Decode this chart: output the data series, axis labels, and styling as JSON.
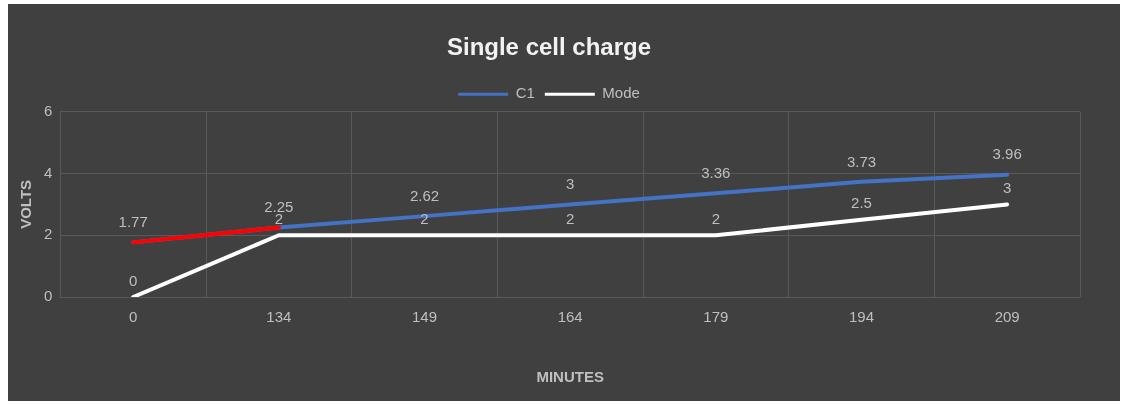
{
  "chart_data": {
    "type": "line",
    "title": "Single cell charge",
    "xlabel": "MINUTES",
    "ylabel": "VOLTS",
    "categories": [
      "0",
      "134",
      "149",
      "164",
      "179",
      "194",
      "209"
    ],
    "series": [
      {
        "name": "C1",
        "color": "#4472c4",
        "colors": [
          "#ff0000",
          "#4472c4",
          "#4472c4",
          "#4472c4",
          "#4472c4",
          "#4472c4",
          "#4472c4"
        ],
        "values": [
          1.77,
          2.25,
          2.62,
          3,
          3.36,
          3.73,
          3.96
        ]
      },
      {
        "name": "Mode",
        "color": "#ffffff",
        "values": [
          0,
          2,
          2,
          2,
          2,
          2.5,
          3
        ]
      }
    ],
    "ylim": [
      0,
      6
    ],
    "yticks": [
      0,
      2,
      4,
      6
    ],
    "grid": true,
    "legend": "top",
    "marker": "none",
    "data_labels": true
  }
}
